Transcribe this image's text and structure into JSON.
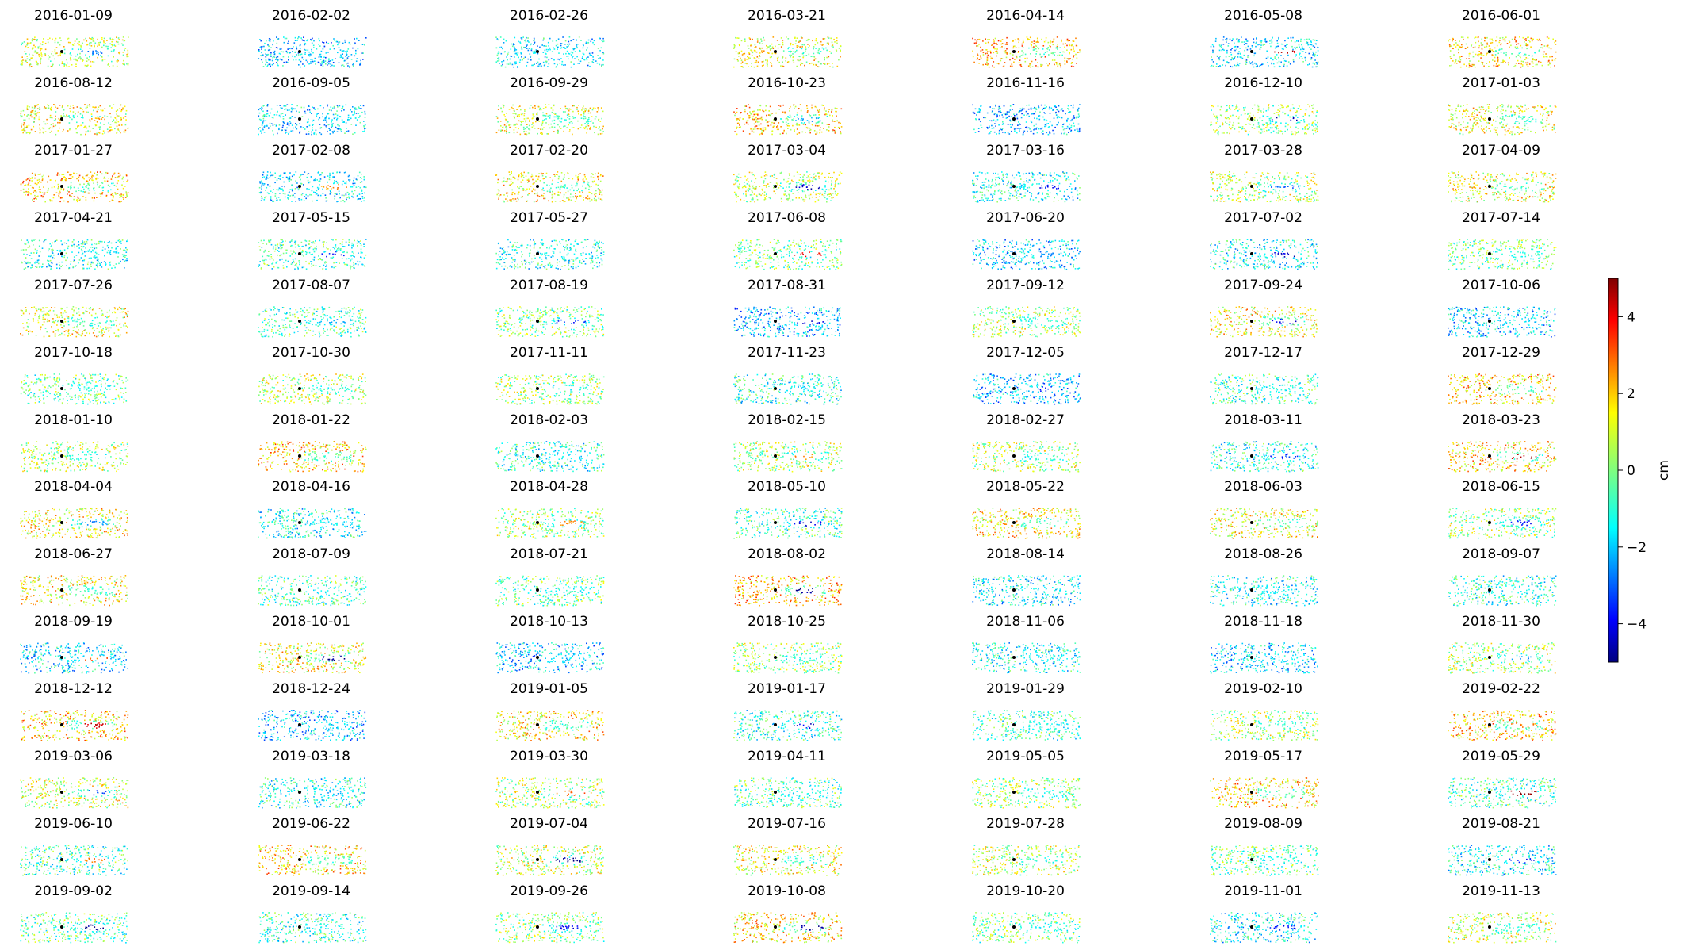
{
  "panels": [
    "2016-01-09",
    "2016-02-02",
    "2016-02-26",
    "2016-03-21",
    "2016-04-14",
    "2016-05-08",
    "2016-06-01",
    "2016-08-12",
    "2016-09-05",
    "2016-09-29",
    "2016-10-23",
    "2016-11-16",
    "2016-12-10",
    "2017-01-03",
    "2017-01-27",
    "2017-02-08",
    "2017-02-20",
    "2017-03-04",
    "2017-03-16",
    "2017-03-28",
    "2017-04-09",
    "2017-04-21",
    "2017-05-15",
    "2017-05-27",
    "2017-06-08",
    "2017-06-20",
    "2017-07-02",
    "2017-07-14",
    "2017-07-26",
    "2017-08-07",
    "2017-08-19",
    "2017-08-31",
    "2017-09-12",
    "2017-09-24",
    "2017-10-06",
    "2017-10-18",
    "2017-10-30",
    "2017-11-11",
    "2017-11-23",
    "2017-12-05",
    "2017-12-17",
    "2017-12-29",
    "2018-01-10",
    "2018-01-22",
    "2018-02-03",
    "2018-02-15",
    "2018-02-27",
    "2018-03-11",
    "2018-03-23",
    "2018-04-04",
    "2018-04-16",
    "2018-04-28",
    "2018-05-10",
    "2018-05-22",
    "2018-06-03",
    "2018-06-15",
    "2018-06-27",
    "2018-07-09",
    "2018-07-21",
    "2018-08-02",
    "2018-08-14",
    "2018-08-26",
    "2018-09-07",
    "2018-09-19",
    "2018-10-01",
    "2018-10-13",
    "2018-10-25",
    "2018-11-06",
    "2018-11-18",
    "2018-11-30",
    "2018-12-12",
    "2018-12-24",
    "2019-01-05",
    "2019-01-17",
    "2019-01-29",
    "2019-02-10",
    "2019-02-22",
    "2019-03-06",
    "2019-03-18",
    "2019-03-30",
    "2019-04-11",
    "2019-05-05",
    "2019-05-17",
    "2019-05-29",
    "2019-06-10",
    "2019-06-22",
    "2019-07-04",
    "2019-07-16",
    "2019-07-28",
    "2019-08-09",
    "2019-08-21",
    "2019-09-02",
    "2019-09-14",
    "2019-09-26",
    "2019-10-08",
    "2019-10-20",
    "2019-11-01",
    "2019-11-13"
  ],
  "chart_data": {
    "type": "scatter",
    "colormap": "jet",
    "colorbar": {
      "label": "cm",
      "ticks": [
        -4,
        -2,
        0,
        2,
        4
      ],
      "range": [
        -5,
        5
      ]
    },
    "reference_point_color": "#000000"
  }
}
